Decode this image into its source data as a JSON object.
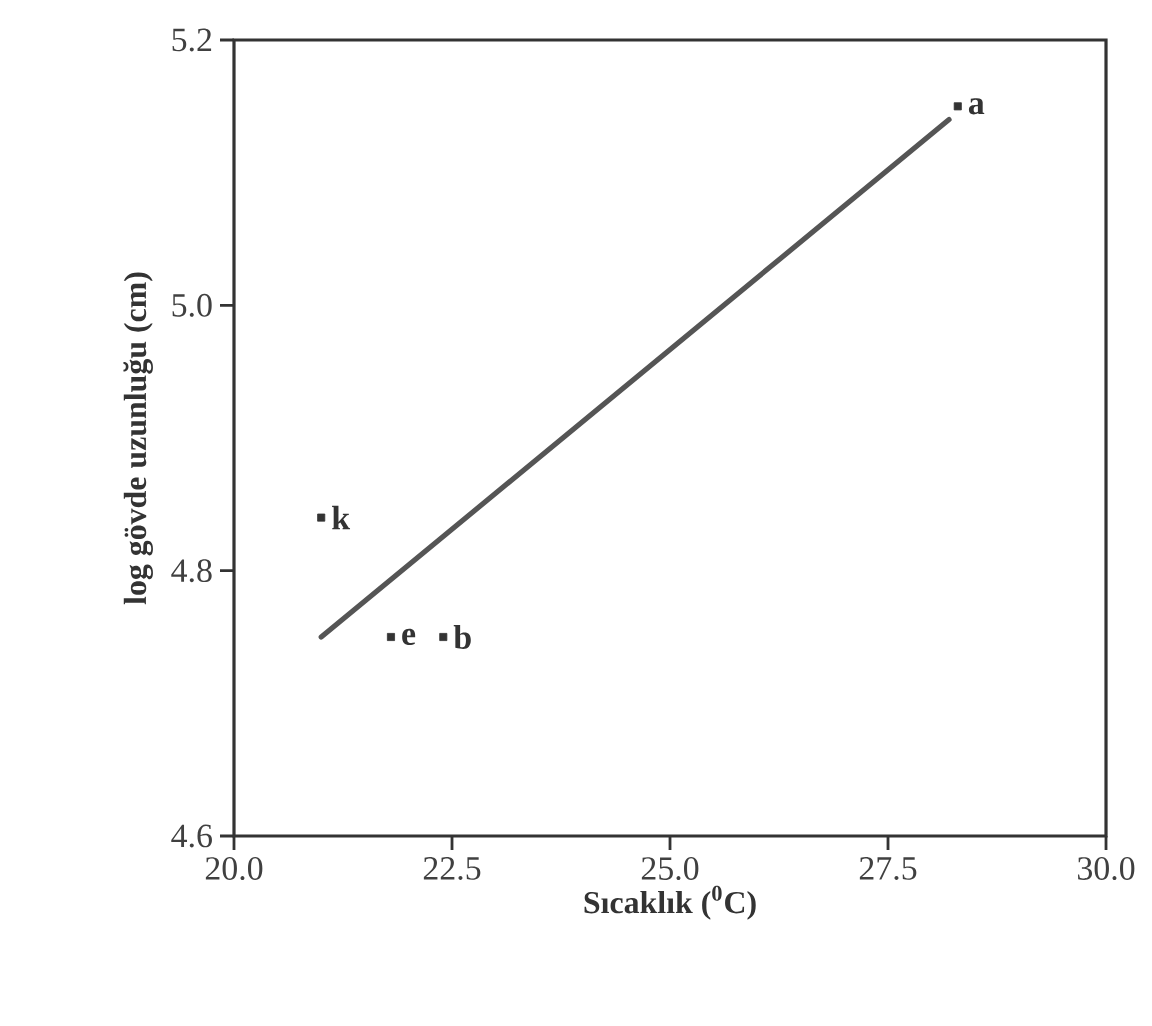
{
  "chart_data": {
    "type": "scatter",
    "xlabel": "**Sıcaklık ($^{0}$C)**",
    "ylabel": "**log gövde uzunluğu (cm)**",
    "xlim": [
      20,
      30
    ],
    "ylim": [
      4.6,
      5.2
    ],
    "xticks": [
      {
        "value": 20,
        "label": "20.0"
      },
      {
        "value": 22.5,
        "label": "22.5"
      },
      {
        "value": 25,
        "label": "25.0"
      },
      {
        "value": 27.5,
        "label": "27.5"
      },
      {
        "value": 30,
        "label": "30.0"
      }
    ],
    "yticks": [
      {
        "value": 4.6,
        "label": "4.6"
      },
      {
        "value": 4.8,
        "label": "4.8"
      },
      {
        "value": 5.0,
        "label": "5.0"
      },
      {
        "value": 5.2,
        "label": "5.2"
      }
    ],
    "grid": false,
    "legend": false,
    "series": [
      {
        "marker": "square",
        "color": "#333333",
        "x": [
          28.3,
          21.0,
          21.8,
          22.4
        ],
        "values": [
          5.15,
          4.84,
          4.75,
          4.75
        ]
      },
      {
        "type": "line",
        "color": "#555555",
        "x": [
          21.0,
          28.2
        ],
        "values": [
          4.75,
          5.14
        ]
      }
    ],
    "annotations": [
      {
        "text": "a",
        "x": 28.3,
        "y": 5.15
      },
      {
        "text": "k",
        "x": 21.0,
        "y": 4.84
      },
      {
        "text": "e",
        "x": 21.8,
        "y": 4.75
      },
      {
        "text": "b",
        "x": 22.4,
        "y": 4.75
      }
    ]
  }
}
